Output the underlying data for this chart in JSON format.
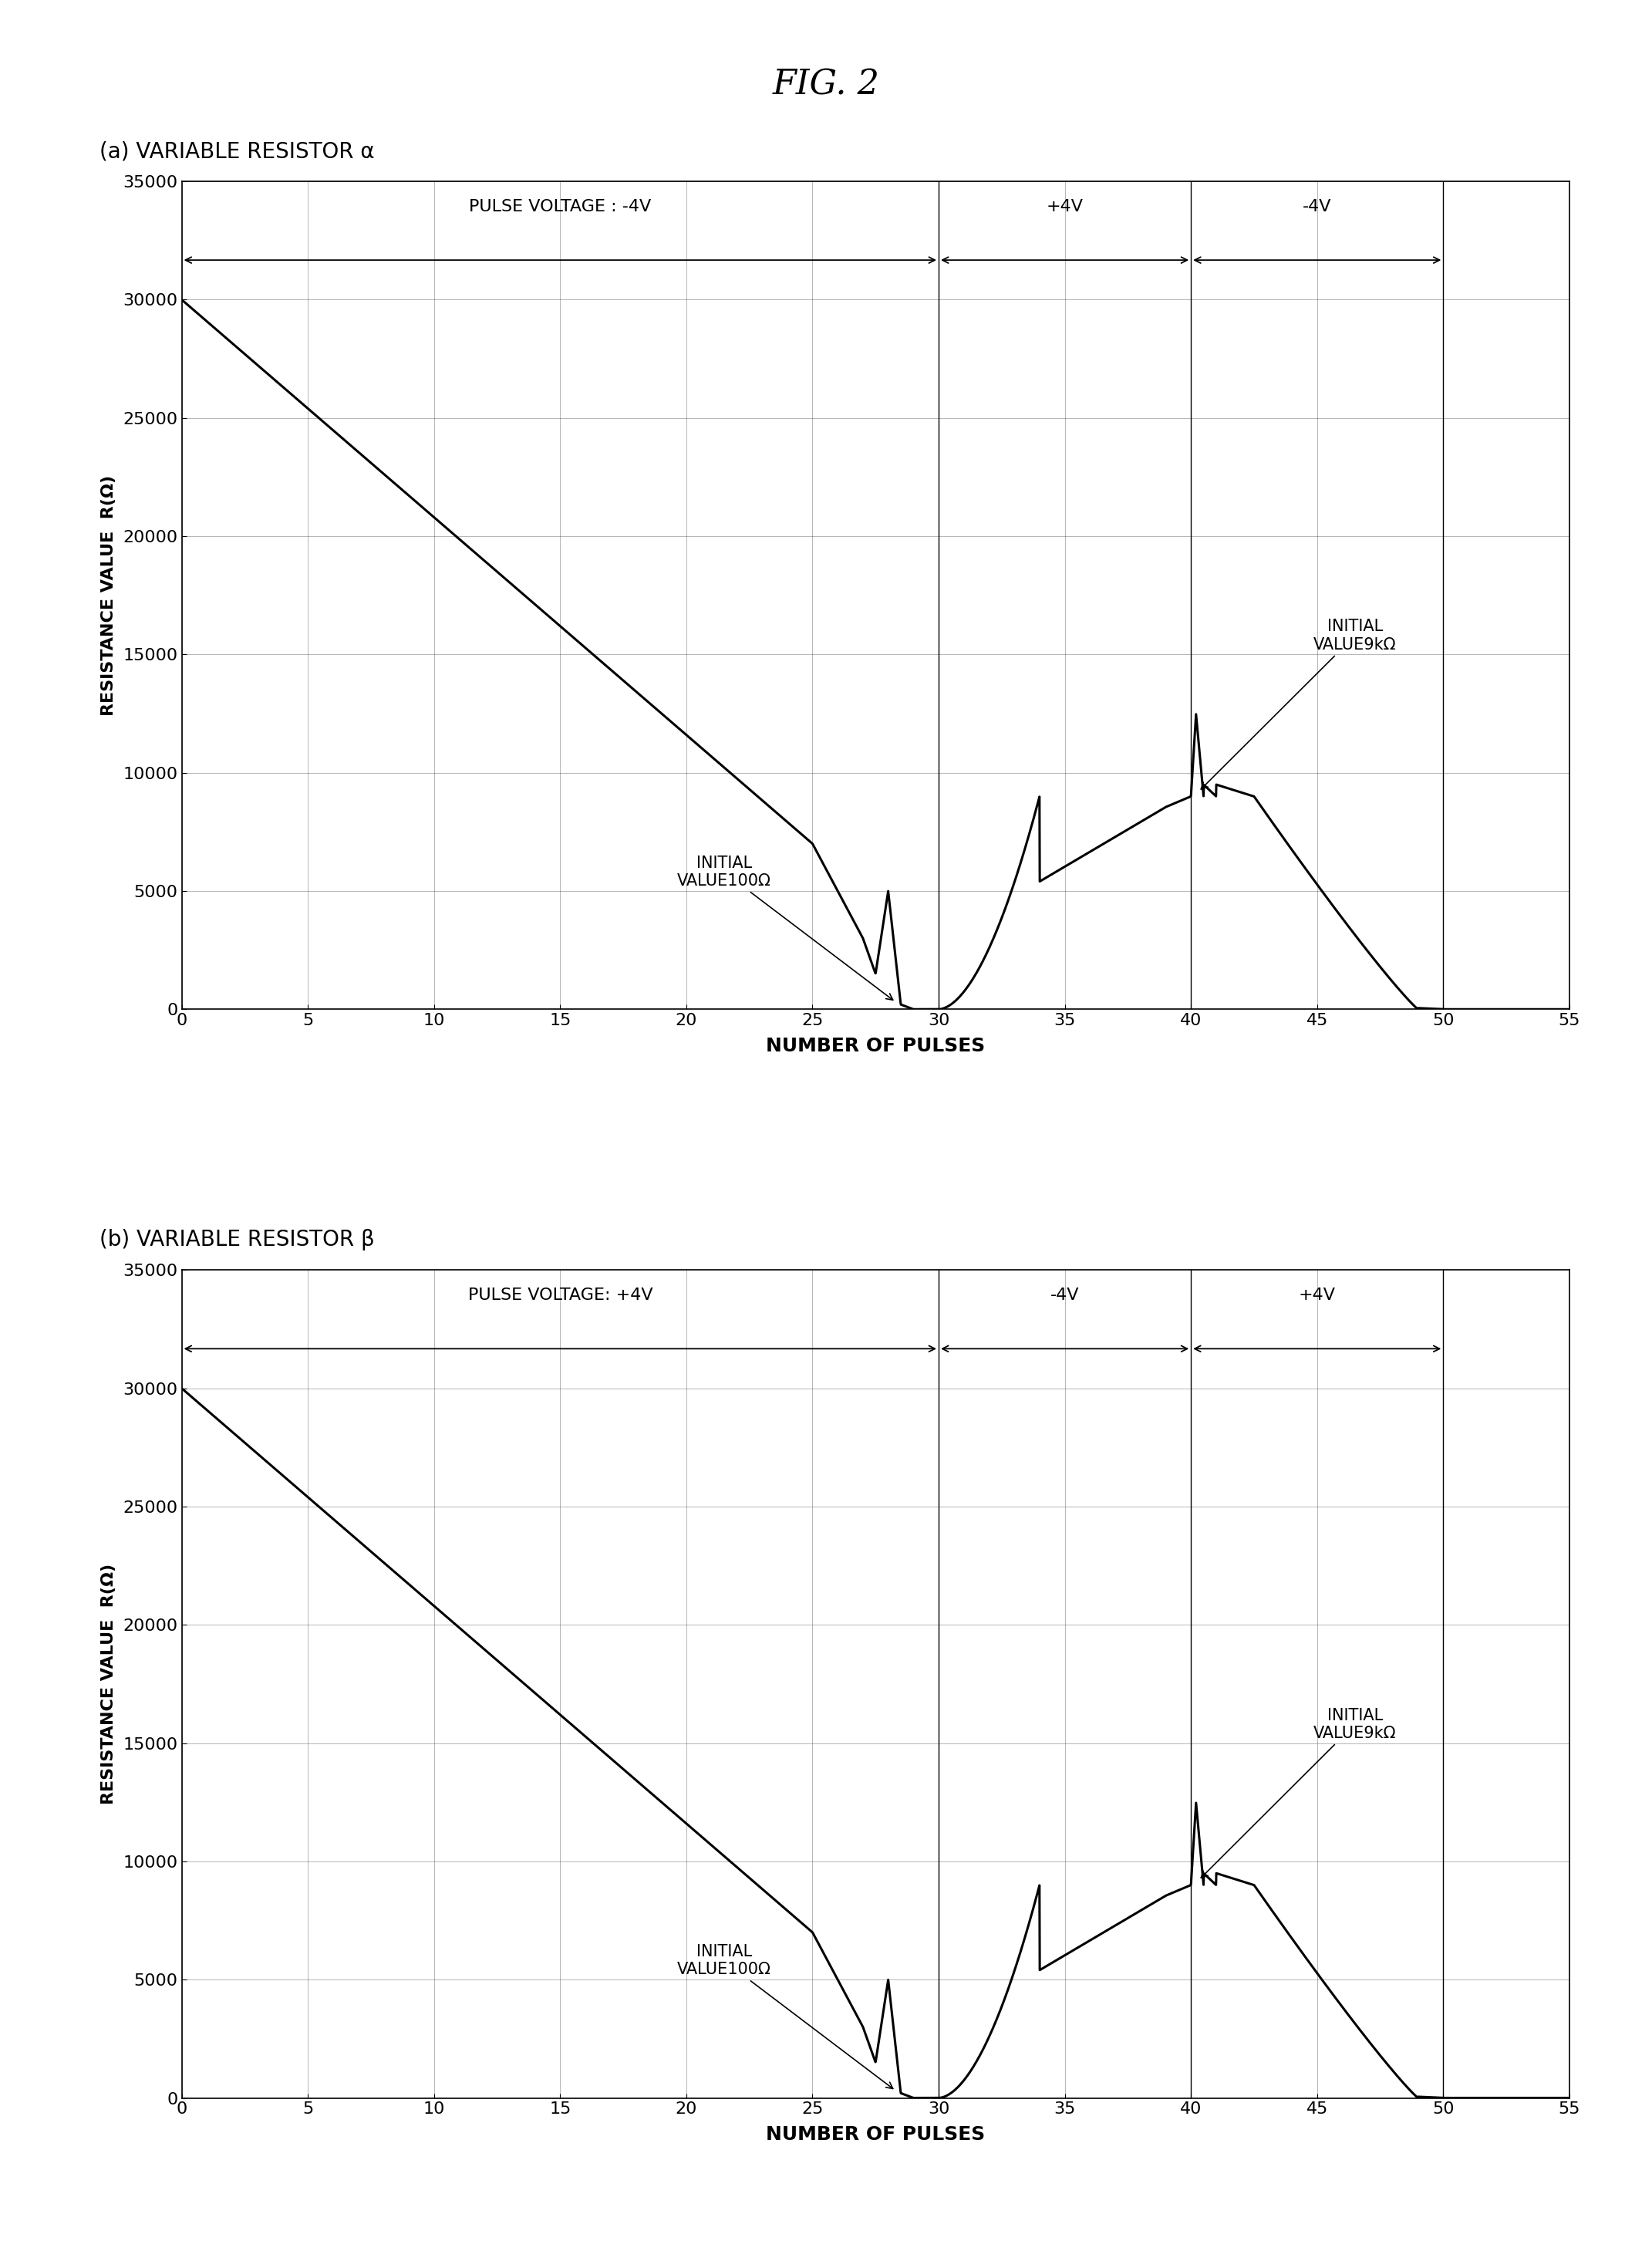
{
  "fig_title": "FIG. 2",
  "subplot_a_label": "(a) VARIABLE RESISTOR α",
  "subplot_b_label": "(b) VARIABLE RESISTOR β",
  "xlabel": "NUMBER OF PULSES",
  "ylabel": "RESISTANCE VALUE  R(Ω)",
  "xlim": [
    0,
    55
  ],
  "ylim": [
    0,
    35000
  ],
  "yticks": [
    0,
    5000,
    10000,
    15000,
    20000,
    25000,
    30000,
    35000
  ],
  "xticks": [
    0,
    5,
    10,
    15,
    20,
    25,
    30,
    35,
    40,
    45,
    50,
    55
  ],
  "region_a_labels": [
    "PULSE VOLTAGE : -4V",
    "+4V",
    "-4V"
  ],
  "region_b_labels": [
    "PULSE VOLTAGE: +4V",
    "-4V",
    "+4V"
  ],
  "region_boundaries": [
    0,
    30,
    40,
    50
  ],
  "annotation_100": "INITIAL\nVALUE100Ω",
  "annotation_9k": "INITIAL\nVALUE9kΩ",
  "bg_color": "#ffffff",
  "line_color": "#000000",
  "font_size_title": 32,
  "font_size_label": 18,
  "font_size_tick": 16,
  "font_size_annot": 15,
  "font_size_region": 16,
  "font_size_subplot_label": 20
}
